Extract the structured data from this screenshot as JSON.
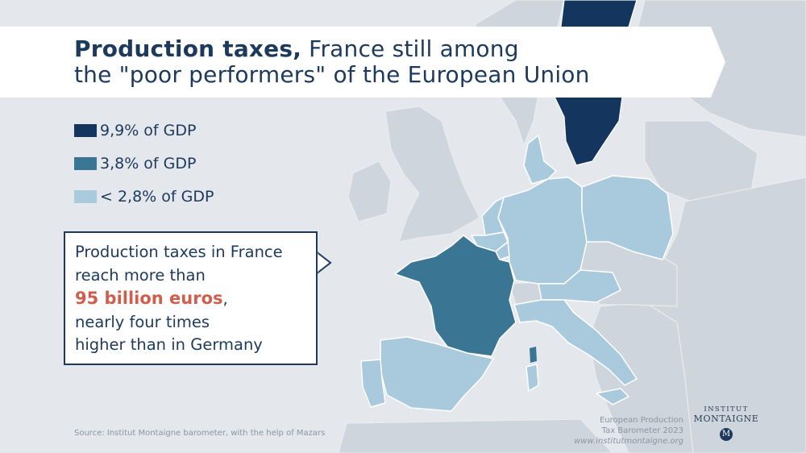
{
  "title": {
    "bold": "Production taxes,",
    "line1_rest": " France still among",
    "line2": "the \"poor performers\" of the European Union"
  },
  "legend": [
    {
      "label": "9,9% of GDP",
      "color": "#14365e"
    },
    {
      "label": "3,8% of GDP",
      "color": "#3a7594"
    },
    {
      "label": "< 2,8% of GDP",
      "color": "#a9c9dd"
    }
  ],
  "callout": {
    "line1": "Production taxes in France",
    "line2": "reach more than",
    "highlight": "95 billion euros",
    "highlight_suffix": ",",
    "line4": "nearly four times",
    "line5": "higher than in Germany",
    "highlight_color": "#cf5e4c"
  },
  "source": "Source: Institut Montaigne barometer, with the help of Mazars",
  "barometer": {
    "line1": "European Production",
    "line2": "Tax Barometer 2023",
    "url": "www.institutmontaigne.org"
  },
  "logo": {
    "line1": "INSTITUT",
    "line2": "MONTAIGNE",
    "seal": "M"
  },
  "map_regions": [
    {
      "country": "Sweden",
      "category": "9,9% of GDP"
    },
    {
      "country": "France",
      "category": "3,8% of GDP"
    },
    {
      "country": "Spain",
      "category": "< 2,8% of GDP"
    },
    {
      "country": "Portugal",
      "category": "< 2,8% of GDP"
    },
    {
      "country": "Italy",
      "category": "< 2,8% of GDP"
    },
    {
      "country": "Germany",
      "category": "< 2,8% of GDP"
    },
    {
      "country": "Poland",
      "category": "< 2,8% of GDP"
    },
    {
      "country": "Denmark",
      "category": "< 2,8% of GDP"
    },
    {
      "country": "Netherlands",
      "category": "< 2,8% of GDP"
    },
    {
      "country": "Belgium",
      "category": "< 2,8% of GDP"
    },
    {
      "country": "Luxembourg",
      "category": "< 2,8% of GDP"
    },
    {
      "country": "Austria",
      "category": "< 2,8% of GDP"
    }
  ],
  "colors": {
    "background": "#e4e7ec",
    "other_land": "#cfd5dc",
    "text_primary": "#1d3a5c",
    "white": "#ffffff"
  }
}
